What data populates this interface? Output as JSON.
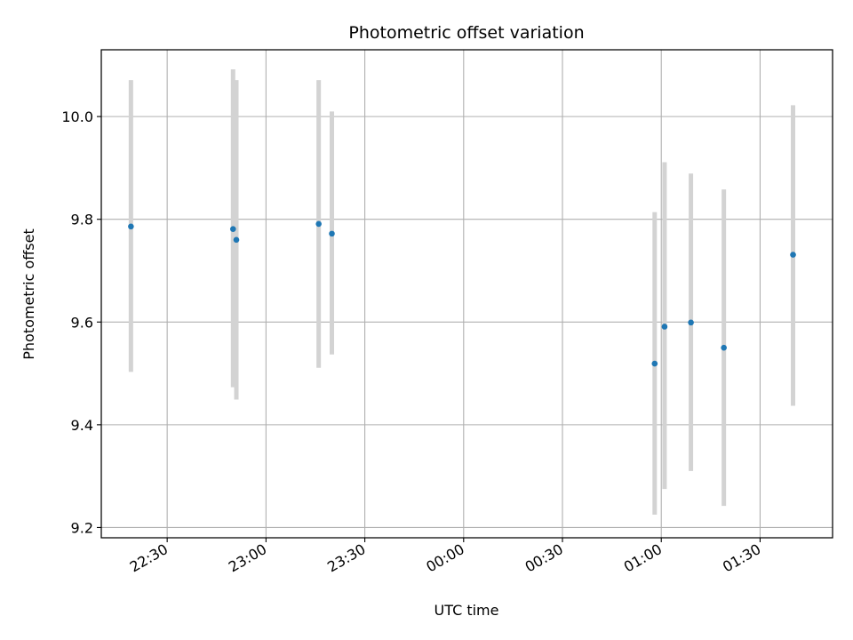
{
  "chart_data": {
    "type": "scatter",
    "title": "Photometric offset variation",
    "xlabel": "UTC time",
    "ylabel": "Photometric offset",
    "x_ticks": [
      "22:30",
      "23:00",
      "23:30",
      "00:00",
      "00:30",
      "01:00",
      "01:30"
    ],
    "y_ticks": [
      "9.2",
      "9.4",
      "9.6",
      "9.8",
      "10.0"
    ],
    "xlim": [
      "22:10",
      "01:52"
    ],
    "ylim": [
      9.18,
      10.13
    ],
    "grid": true,
    "colors": {
      "marker": "#1f77b4",
      "errorbar": "#d3d3d3",
      "grid": "#b0b0b0"
    },
    "points": [
      {
        "time": "22:19",
        "y": 9.786,
        "err_low": 9.503,
        "err_high": 10.071
      },
      {
        "time": "22:50",
        "y": 9.781,
        "err_low": 9.473,
        "err_high": 10.092
      },
      {
        "time": "22:51",
        "y": 9.76,
        "err_low": 9.449,
        "err_high": 10.071
      },
      {
        "time": "23:16",
        "y": 9.791,
        "err_low": 9.511,
        "err_high": 10.071
      },
      {
        "time": "23:20",
        "y": 9.772,
        "err_low": 9.537,
        "err_high": 10.01
      },
      {
        "time": "00:58",
        "y": 9.519,
        "err_low": 9.225,
        "err_high": 9.814
      },
      {
        "time": "01:01",
        "y": 9.591,
        "err_low": 9.275,
        "err_high": 9.911
      },
      {
        "time": "01:09",
        "y": 9.599,
        "err_low": 9.31,
        "err_high": 9.889
      },
      {
        "time": "01:19",
        "y": 9.55,
        "err_low": 9.242,
        "err_high": 9.858
      },
      {
        "time": "01:40",
        "y": 9.731,
        "err_low": 9.437,
        "err_high": 10.022
      }
    ]
  }
}
